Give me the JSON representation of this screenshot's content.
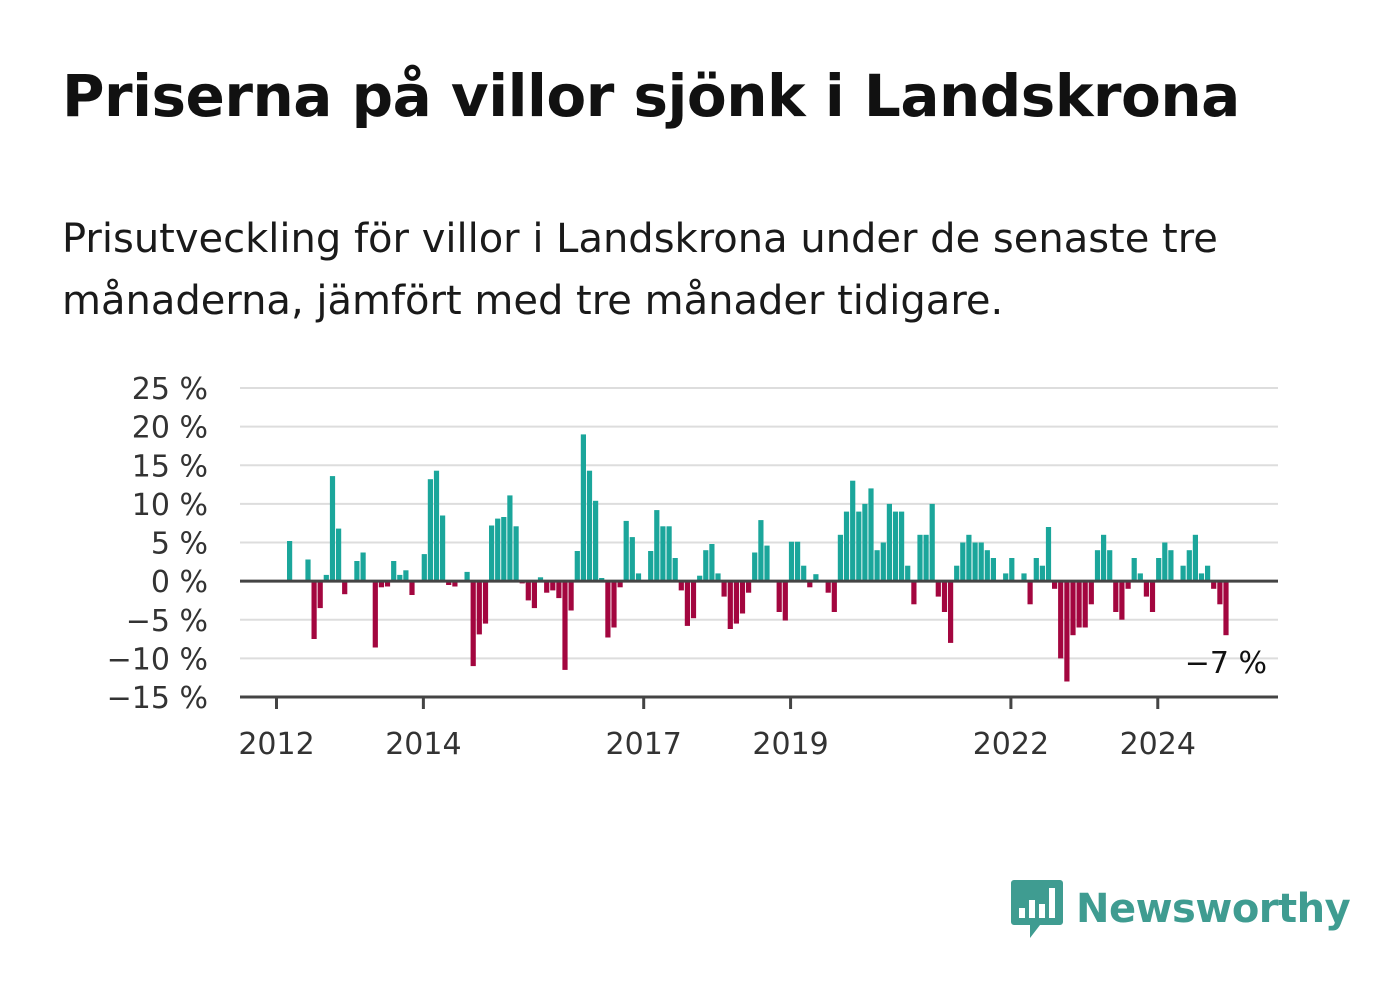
{
  "title": "Priserna på villor sjönk i Landskrona",
  "subtitle": "Prisutveckling för villor i Landskrona under de senaste tre månaderna, jämfört med tre månader tidigare.",
  "brand": {
    "name": "Newsworthy",
    "icon": "newsworthy-logo-icon",
    "color": "#3f9c91"
  },
  "colors": {
    "positive": "#1ba69b",
    "negative": "#a3063f",
    "grid": "#dddddd",
    "axis": "#444444"
  },
  "chart_data": {
    "type": "bar",
    "ylim": [
      -15,
      25
    ],
    "yticks": [
      25,
      20,
      15,
      10,
      5,
      0,
      -5,
      -10,
      -15
    ],
    "ytick_labels": [
      "25 %",
      "20 %",
      "15 %",
      "10 %",
      "5 %",
      "0 %",
      "−5 %",
      "−10 %",
      "−15 %"
    ],
    "xticks": [
      {
        "label": "2012",
        "x": 2012
      },
      {
        "label": "2014",
        "x": 2014
      },
      {
        "label": "2017",
        "x": 2017
      },
      {
        "label": "2019",
        "x": 2019
      },
      {
        "label": "2022",
        "x": 2022
      },
      {
        "label": "2024",
        "x": 2024
      }
    ],
    "start_year": 2012,
    "start_month": 1,
    "grid": true,
    "annotation": {
      "text": "−7 %",
      "value": -7
    },
    "values": [
      null,
      5.2,
      null,
      null,
      2.8,
      -7.5,
      -3.5,
      0.8,
      13.6,
      6.8,
      -1.7,
      null,
      2.6,
      3.7,
      null,
      -8.6,
      -0.8,
      -0.7,
      2.6,
      0.8,
      1.4,
      -1.8,
      null,
      3.5,
      13.2,
      14.3,
      8.5,
      -0.5,
      -0.7,
      null,
      1.2,
      -11.0,
      -6.9,
      -5.5,
      7.2,
      8.1,
      8.3,
      11.1,
      7.1,
      -0.3,
      -2.5,
      -3.5,
      0.5,
      -1.5,
      -1.2,
      -2.2,
      -11.5,
      -3.8,
      3.9,
      19.0,
      14.3,
      10.4,
      0.4,
      -7.3,
      -6.0,
      -0.8,
      7.8,
      5.7,
      1.0,
      null,
      3.9,
      9.2,
      7.1,
      7.1,
      3.0,
      -1.2,
      -5.8,
      -4.8,
      0.7,
      4.0,
      4.8,
      1.0,
      -2.0,
      -6.2,
      -5.5,
      -4.2,
      -1.5,
      3.7,
      7.9,
      4.6,
      null,
      -4.0,
      -5.1,
      5.1,
      5.1,
      2.0,
      -0.8,
      0.9,
      null,
      -1.5,
      -4.0,
      6.0,
      9.0,
      13.0,
      9.0,
      10.0,
      12.0,
      4.0,
      5.0,
      10.0,
      9.0,
      9.0,
      2.0,
      -3.0,
      6.0,
      6.0,
      10.0,
      -2.0,
      -4.0,
      -8.0,
      2.0,
      5.0,
      6.0,
      5.0,
      5.0,
      4.0,
      3.0,
      null,
      1.0,
      3.0,
      null,
      1.0,
      -3.0,
      3.0,
      2.0,
      7.0,
      -1.0,
      -10.0,
      -13.0,
      -7.0,
      -6.0,
      -6.0,
      -3.0,
      4.0,
      6.0,
      4.0,
      -4.0,
      -5.0,
      -1.0,
      3.0,
      1.0,
      -2.0,
      -4.0,
      3.0,
      5.0,
      4.0,
      null,
      2.0,
      4.0,
      6.0,
      1.0,
      2.0,
      -1.0,
      -3.0,
      -7.0
    ]
  }
}
